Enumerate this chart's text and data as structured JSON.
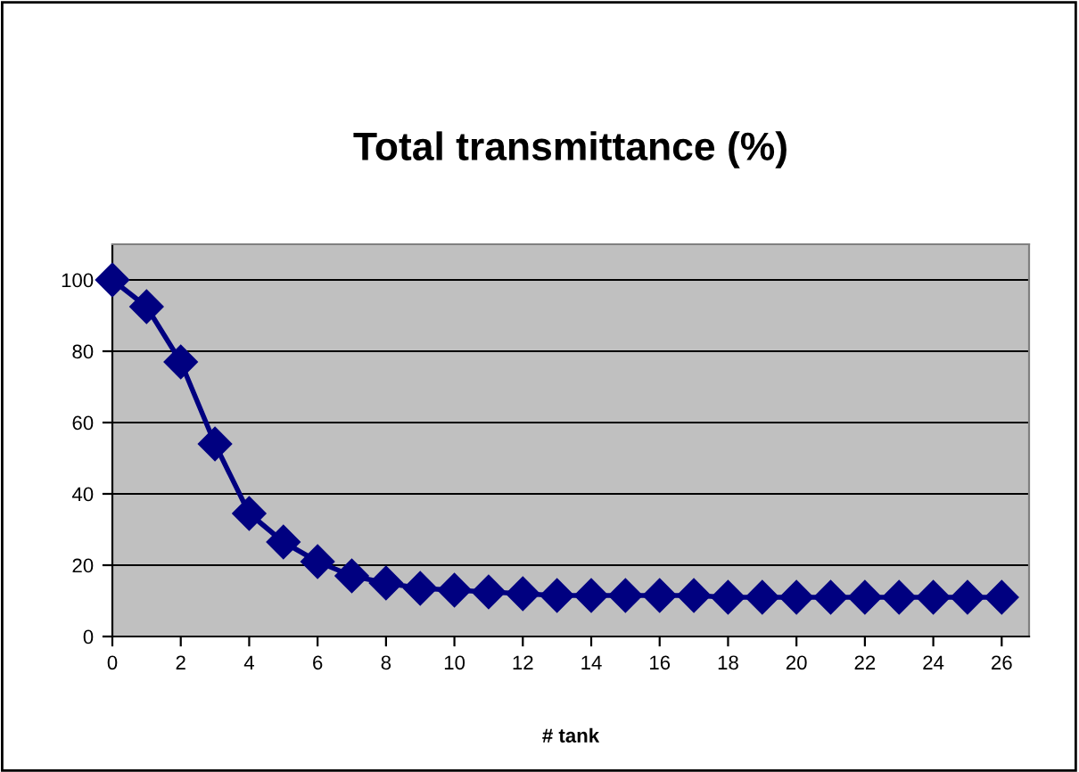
{
  "chart_data": {
    "type": "line",
    "title": "Total transmittance (%)",
    "xlabel": "# tank",
    "x": [
      0,
      1,
      2,
      3,
      4,
      5,
      6,
      7,
      8,
      9,
      10,
      11,
      12,
      13,
      14,
      15,
      16,
      17,
      18,
      19,
      20,
      21,
      22,
      23,
      24,
      25,
      26
    ],
    "series": [
      {
        "color": "#000080",
        "values": [
          100,
          92.5,
          77,
          54,
          34.5,
          26.5,
          21,
          17,
          15,
          13.5,
          13,
          12.5,
          12,
          11.5,
          11.5,
          11.5,
          11.5,
          11.5,
          11,
          11,
          11,
          11,
          11,
          11,
          11,
          11,
          11
        ]
      }
    ],
    "xlim": [
      0,
      26.8
    ],
    "xticks": [
      0,
      2,
      4,
      6,
      8,
      10,
      12,
      14,
      16,
      18,
      20,
      22,
      24,
      26
    ],
    "ylim": [
      0,
      110
    ],
    "yticks": [
      0,
      20,
      40,
      60,
      80,
      100
    ],
    "grid": "y",
    "marker": "diamond",
    "line_style": "solid",
    "legend": false
  }
}
